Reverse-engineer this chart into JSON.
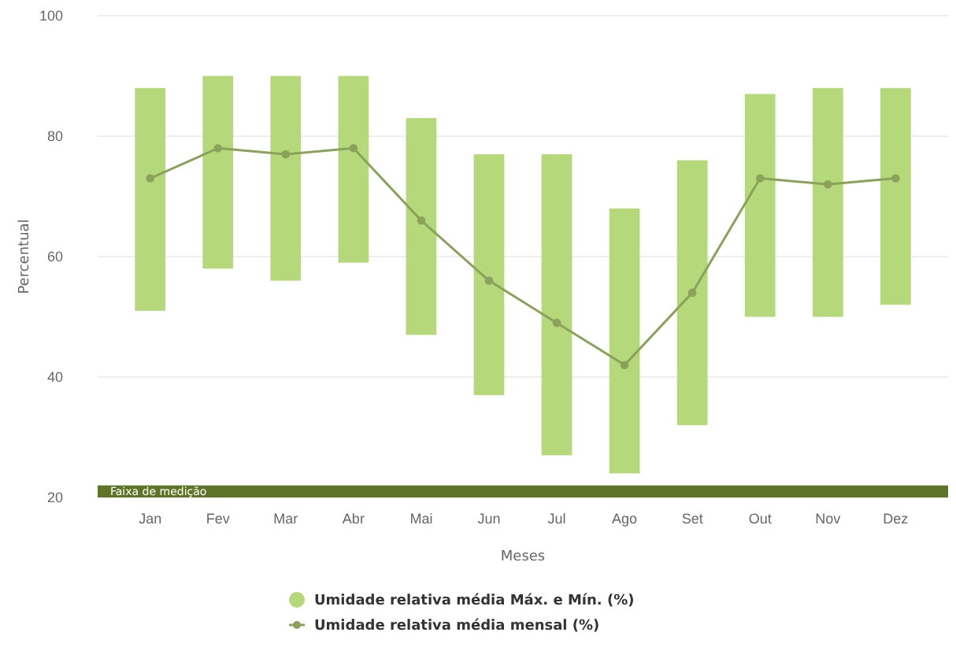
{
  "chart_data": {
    "type": "bar",
    "xlabel": "Meses",
    "ylabel": "Percentual",
    "categories": [
      "Jan",
      "Fev",
      "Mar",
      "Abr",
      "Mai",
      "Jun",
      "Jul",
      "Ago",
      "Set",
      "Out",
      "Nov",
      "Dez"
    ],
    "series": [
      {
        "name": "Umidade relativa média Máx. e Mín. (%)",
        "color": "#b5d87a",
        "base": [
          51,
          58,
          56,
          59,
          47,
          37,
          27,
          24,
          32,
          50,
          50,
          52
        ],
        "values": [
          37,
          32,
          34,
          31,
          36,
          40,
          50,
          44,
          44,
          37,
          38,
          36
        ]
      },
      {
        "name": "Umidade relativa média mensal (%)",
        "type": "line",
        "color": "#8aa25a",
        "marker": "circle",
        "values": [
          73,
          78,
          77,
          78,
          66,
          56,
          49,
          42,
          54,
          73,
          72,
          73
        ]
      }
    ],
    "ylim": [
      20,
      100
    ],
    "yticks": [
      20,
      40,
      60,
      80,
      100
    ],
    "grid": "y",
    "legend": "bottom",
    "bands": [
      {
        "axis": "y",
        "from": 20,
        "to": 22,
        "label": "Faixa de medição",
        "color": "#5f7426"
      }
    ]
  }
}
